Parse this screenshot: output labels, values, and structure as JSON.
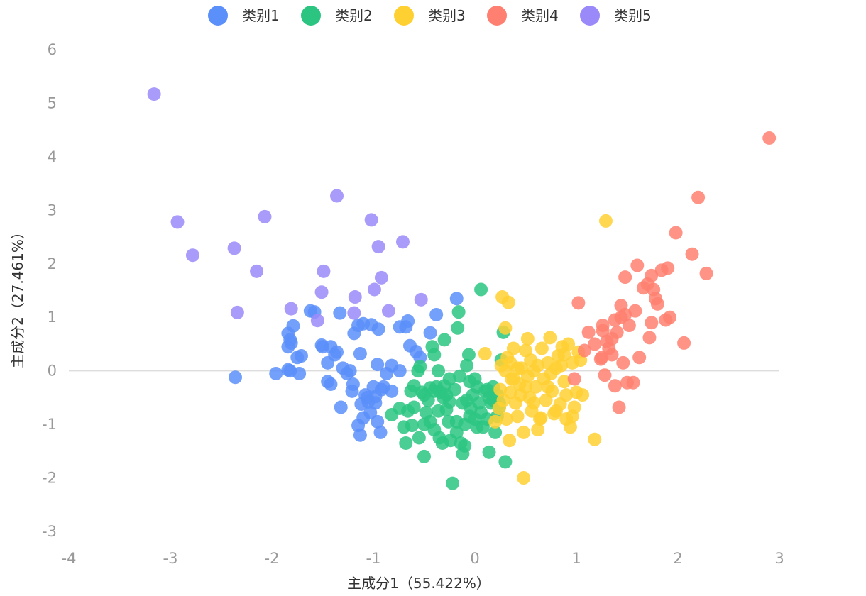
{
  "chart_data": {
    "type": "scatter",
    "xlabel": "主成分1（55.422%）",
    "ylabel": "主成分2（27.461%）",
    "xlim": [
      -4,
      3
    ],
    "ylim": [
      -3,
      6
    ],
    "xticks": [
      "-4",
      "-3",
      "-2",
      "-1",
      "0",
      "1",
      "2",
      "3"
    ],
    "yticks": [
      "-3",
      "-2",
      "-1",
      "0",
      "1",
      "2",
      "3",
      "4",
      "5",
      "6"
    ],
    "grid": false,
    "zero_line": true,
    "legend_position": "top-center",
    "series": [
      {
        "name": "类别1",
        "color": "#5B8FF9",
        "points": [
          [
            -2.36,
            -0.12
          ],
          [
            -1.96,
            -0.05
          ],
          [
            -1.84,
            0.02
          ],
          [
            -1.82,
            0.0
          ],
          [
            -1.73,
            -0.05
          ],
          [
            -1.84,
            0.7
          ],
          [
            -1.82,
            0.58
          ],
          [
            -1.81,
            0.52
          ],
          [
            -1.84,
            0.45
          ],
          [
            -1.79,
            0.84
          ],
          [
            -1.75,
            0.25
          ],
          [
            -1.71,
            0.28
          ],
          [
            -1.62,
            1.12
          ],
          [
            -1.58,
            1.1
          ],
          [
            -1.51,
            0.48
          ],
          [
            -1.5,
            0.45
          ],
          [
            -1.45,
            0.15
          ],
          [
            -1.45,
            -0.2
          ],
          [
            -1.42,
            -0.25
          ],
          [
            -1.42,
            0.45
          ],
          [
            -1.38,
            0.3
          ],
          [
            -1.36,
            0.35
          ],
          [
            -1.33,
            1.08
          ],
          [
            -1.3,
            0.05
          ],
          [
            -1.26,
            -0.05
          ],
          [
            -1.23,
            0.0
          ],
          [
            -1.21,
            -0.38
          ],
          [
            -1.19,
            0.7
          ],
          [
            -1.15,
            0.85
          ],
          [
            -1.13,
            0.32
          ],
          [
            -1.1,
            0.88
          ],
          [
            -1.08,
            -0.45
          ],
          [
            -1.06,
            -0.5
          ],
          [
            -1.02,
            0.86
          ],
          [
            -1.0,
            -0.3
          ],
          [
            -0.98,
            -0.6
          ],
          [
            -0.96,
            0.12
          ],
          [
            -0.95,
            0.78
          ],
          [
            -0.92,
            -0.35
          ],
          [
            -0.9,
            -0.3
          ],
          [
            -0.87,
            -0.05
          ],
          [
            -0.82,
            -0.38
          ],
          [
            -0.82,
            0.1
          ],
          [
            -0.74,
            0.0
          ],
          [
            -0.74,
            0.82
          ],
          [
            -0.68,
            0.82
          ],
          [
            -0.66,
            0.93
          ],
          [
            -0.64,
            0.47
          ],
          [
            -0.58,
            0.36
          ],
          [
            -0.54,
            0.25
          ],
          [
            -0.44,
            0.71
          ],
          [
            -0.38,
            1.05
          ],
          [
            -0.18,
            1.35
          ],
          [
            -1.12,
            -0.62
          ],
          [
            -1.05,
            -0.58
          ],
          [
            -1.15,
            -1.02
          ],
          [
            -1.13,
            -1.2
          ],
          [
            -1.1,
            -0.88
          ],
          [
            -1.03,
            -0.78
          ],
          [
            -0.96,
            -0.95
          ],
          [
            -0.93,
            -1.15
          ],
          [
            -1.32,
            -0.68
          ],
          [
            -1.2,
            -0.25
          ],
          [
            -0.98,
            -0.48
          ]
        ]
      },
      {
        "name": "类别2",
        "color": "#2BC581",
        "points": [
          [
            -0.74,
            -0.7
          ],
          [
            -0.7,
            -1.05
          ],
          [
            -0.66,
            -0.75
          ],
          [
            -0.63,
            -0.38
          ],
          [
            -0.6,
            -0.68
          ],
          [
            -0.56,
            0.0
          ],
          [
            -0.54,
            0.08
          ],
          [
            -0.52,
            -0.4
          ],
          [
            -0.5,
            -0.45
          ],
          [
            -0.48,
            -0.78
          ],
          [
            -0.46,
            -0.55
          ],
          [
            -0.44,
            -0.95
          ],
          [
            -0.42,
            0.45
          ],
          [
            -0.4,
            -0.38
          ],
          [
            -0.38,
            -0.3
          ],
          [
            -0.36,
            0.0
          ],
          [
            -0.34,
            -0.4
          ],
          [
            -0.32,
            -1.35
          ],
          [
            -0.31,
            -0.5
          ],
          [
            -0.3,
            -0.28
          ],
          [
            -0.28,
            -0.45
          ],
          [
            -0.26,
            -0.95
          ],
          [
            -0.24,
            -1.3
          ],
          [
            -0.22,
            -2.1
          ],
          [
            -0.2,
            -0.35
          ],
          [
            -0.18,
            -1.15
          ],
          [
            -0.16,
            1.1
          ],
          [
            -0.14,
            -1.35
          ],
          [
            -0.12,
            -1.55
          ],
          [
            -0.1,
            -1.0
          ],
          [
            -0.08,
            -0.55
          ],
          [
            -0.06,
            0.3
          ],
          [
            -0.05,
            -0.2
          ],
          [
            -0.04,
            -0.7
          ],
          [
            -0.02,
            -0.45
          ],
          [
            0.0,
            -0.9
          ],
          [
            0.02,
            -0.3
          ],
          [
            0.04,
            -0.6
          ],
          [
            0.06,
            1.52
          ],
          [
            0.08,
            -1.05
          ],
          [
            0.1,
            -0.38
          ],
          [
            0.12,
            -0.9
          ],
          [
            0.14,
            -0.5
          ],
          [
            0.16,
            -0.6
          ],
          [
            0.18,
            -0.55
          ],
          [
            0.2,
            -1.15
          ],
          [
            0.22,
            -0.45
          ],
          [
            0.24,
            -0.68
          ],
          [
            0.26,
            0.2
          ],
          [
            0.28,
            0.72
          ],
          [
            0.3,
            -1.7
          ],
          [
            0.14,
            -1.52
          ],
          [
            -0.68,
            -1.35
          ],
          [
            -0.5,
            -1.6
          ],
          [
            -0.17,
            0.8
          ],
          [
            -0.3,
            0.58
          ],
          [
            -0.4,
            0.3
          ],
          [
            -0.62,
            -1.02
          ],
          [
            -0.55,
            -1.25
          ],
          [
            -0.4,
            -1.1
          ],
          [
            -0.36,
            -0.75
          ],
          [
            -0.28,
            -0.72
          ],
          [
            -0.25,
            -0.58
          ],
          [
            -0.18,
            -0.95
          ],
          [
            -0.12,
            -0.6
          ],
          [
            -0.05,
            -0.85
          ],
          [
            0.02,
            -1.05
          ],
          [
            0.06,
            -0.78
          ],
          [
            0.12,
            -0.35
          ],
          [
            0.22,
            -0.85
          ],
          [
            -0.82,
            -0.82
          ],
          [
            -0.6,
            -0.28
          ],
          [
            -0.44,
            -0.32
          ],
          [
            -0.15,
            -0.1
          ],
          [
            -0.08,
            0.1
          ],
          [
            0.0,
            -0.15
          ],
          [
            -0.25,
            -0.15
          ],
          [
            -0.5,
            -1.0
          ],
          [
            -0.35,
            -1.25
          ],
          [
            -0.1,
            -1.4
          ],
          [
            0.24,
            -0.6
          ],
          [
            0.18,
            -0.3
          ]
        ]
      },
      {
        "name": "类别3",
        "color": "#FFD032",
        "points": [
          [
            0.24,
            -0.7
          ],
          [
            0.25,
            -0.35
          ],
          [
            0.26,
            0.1
          ],
          [
            0.27,
            1.38
          ],
          [
            0.28,
            -0.55
          ],
          [
            0.3,
            0.8
          ],
          [
            0.31,
            -0.9
          ],
          [
            0.32,
            0.25
          ],
          [
            0.33,
            1.28
          ],
          [
            0.34,
            -1.3
          ],
          [
            0.35,
            -0.4
          ],
          [
            0.36,
            -0.15
          ],
          [
            0.38,
            0.42
          ],
          [
            0.4,
            -0.6
          ],
          [
            0.42,
            -0.85
          ],
          [
            0.44,
            -0.25
          ],
          [
            0.46,
            0.05
          ],
          [
            0.48,
            -1.15
          ],
          [
            0.5,
            0.38
          ],
          [
            0.52,
            0.6
          ],
          [
            0.54,
            -0.5
          ],
          [
            0.56,
            -0.75
          ],
          [
            0.58,
            0.0
          ],
          [
            0.6,
            -0.3
          ],
          [
            0.62,
            -1.1
          ],
          [
            0.64,
            -0.9
          ],
          [
            0.66,
            0.42
          ],
          [
            0.68,
            -0.15
          ],
          [
            0.7,
            -0.55
          ],
          [
            0.72,
            0.15
          ],
          [
            0.74,
            0.62
          ],
          [
            0.76,
            -0.38
          ],
          [
            0.78,
            -0.8
          ],
          [
            0.8,
            0.05
          ],
          [
            0.82,
            0.28
          ],
          [
            0.84,
            -0.62
          ],
          [
            0.86,
            0.45
          ],
          [
            0.88,
            -0.2
          ],
          [
            0.9,
            -0.9
          ],
          [
            0.92,
            0.5
          ],
          [
            0.94,
            -1.05
          ],
          [
            0.96,
            0.15
          ],
          [
            0.98,
            -0.68
          ],
          [
            1.0,
            -0.4
          ],
          [
            1.02,
            0.35
          ],
          [
            1.04,
            0.2
          ],
          [
            1.06,
            -0.45
          ],
          [
            1.18,
            -1.28
          ],
          [
            1.29,
            2.8
          ],
          [
            0.48,
            -2.0
          ],
          [
            0.1,
            0.32
          ],
          [
            0.2,
            -0.95
          ],
          [
            0.3,
            0.0
          ],
          [
            0.38,
            -0.15
          ],
          [
            0.45,
            -0.45
          ],
          [
            0.52,
            -0.1
          ],
          [
            0.58,
            -0.6
          ],
          [
            0.65,
            -0.88
          ],
          [
            0.72,
            -0.3
          ],
          [
            0.8,
            -0.75
          ],
          [
            0.9,
            -0.45
          ],
          [
            0.96,
            -0.85
          ],
          [
            0.35,
            0.15
          ],
          [
            0.42,
            0.05
          ],
          [
            0.5,
            -0.3
          ],
          [
            0.55,
            0.2
          ],
          [
            0.62,
            0.1
          ],
          [
            0.75,
            -0.05
          ],
          [
            0.85,
            0.1
          ],
          [
            0.88,
            0.3
          ]
        ]
      },
      {
        "name": "类别4",
        "color": "#FF8070",
        "points": [
          [
            0.98,
            -0.15
          ],
          [
            1.02,
            1.27
          ],
          [
            1.08,
            0.38
          ],
          [
            1.12,
            0.72
          ],
          [
            1.18,
            0.5
          ],
          [
            1.24,
            0.22
          ],
          [
            1.26,
            0.85
          ],
          [
            1.28,
            -0.08
          ],
          [
            1.3,
            0.55
          ],
          [
            1.32,
            0.42
          ],
          [
            1.35,
            0.3
          ],
          [
            1.38,
            -0.28
          ],
          [
            1.4,
            0.72
          ],
          [
            1.42,
            -0.68
          ],
          [
            1.44,
            1.22
          ],
          [
            1.46,
            0.15
          ],
          [
            1.48,
            1.75
          ],
          [
            1.5,
            -0.22
          ],
          [
            1.52,
            0.85
          ],
          [
            1.56,
            -0.22
          ],
          [
            1.58,
            1.12
          ],
          [
            1.6,
            1.97
          ],
          [
            1.62,
            0.25
          ],
          [
            1.66,
            1.55
          ],
          [
            1.7,
            1.62
          ],
          [
            1.72,
            0.62
          ],
          [
            1.74,
            1.78
          ],
          [
            1.76,
            1.52
          ],
          [
            1.78,
            1.35
          ],
          [
            1.8,
            1.25
          ],
          [
            1.84,
            1.88
          ],
          [
            1.88,
            0.95
          ],
          [
            1.9,
            1.92
          ],
          [
            1.92,
            1.0
          ],
          [
            1.98,
            2.58
          ],
          [
            2.06,
            0.52
          ],
          [
            2.14,
            2.18
          ],
          [
            2.2,
            3.24
          ],
          [
            2.28,
            1.82
          ],
          [
            2.9,
            4.35
          ],
          [
            1.25,
            0.25
          ],
          [
            1.38,
            0.95
          ],
          [
            1.44,
            1.0
          ],
          [
            1.48,
            1.05
          ],
          [
            1.74,
            0.9
          ],
          [
            1.26,
            0.75
          ],
          [
            1.35,
            0.6
          ]
        ]
      },
      {
        "name": "类别5",
        "color": "#9A8AF9",
        "points": [
          [
            -3.16,
            5.17
          ],
          [
            -2.93,
            2.78
          ],
          [
            -2.78,
            2.16
          ],
          [
            -2.37,
            2.29
          ],
          [
            -2.34,
            1.09
          ],
          [
            -2.15,
            1.86
          ],
          [
            -2.07,
            2.88
          ],
          [
            -1.81,
            1.16
          ],
          [
            -1.55,
            0.94
          ],
          [
            -1.51,
            1.47
          ],
          [
            -1.49,
            1.86
          ],
          [
            -1.36,
            3.27
          ],
          [
            -1.19,
            1.08
          ],
          [
            -1.18,
            1.38
          ],
          [
            -1.02,
            2.82
          ],
          [
            -0.99,
            1.52
          ],
          [
            -0.95,
            2.32
          ],
          [
            -0.92,
            1.74
          ],
          [
            -0.85,
            1.12
          ],
          [
            -0.71,
            2.41
          ],
          [
            -0.53,
            1.33
          ]
        ]
      }
    ]
  }
}
